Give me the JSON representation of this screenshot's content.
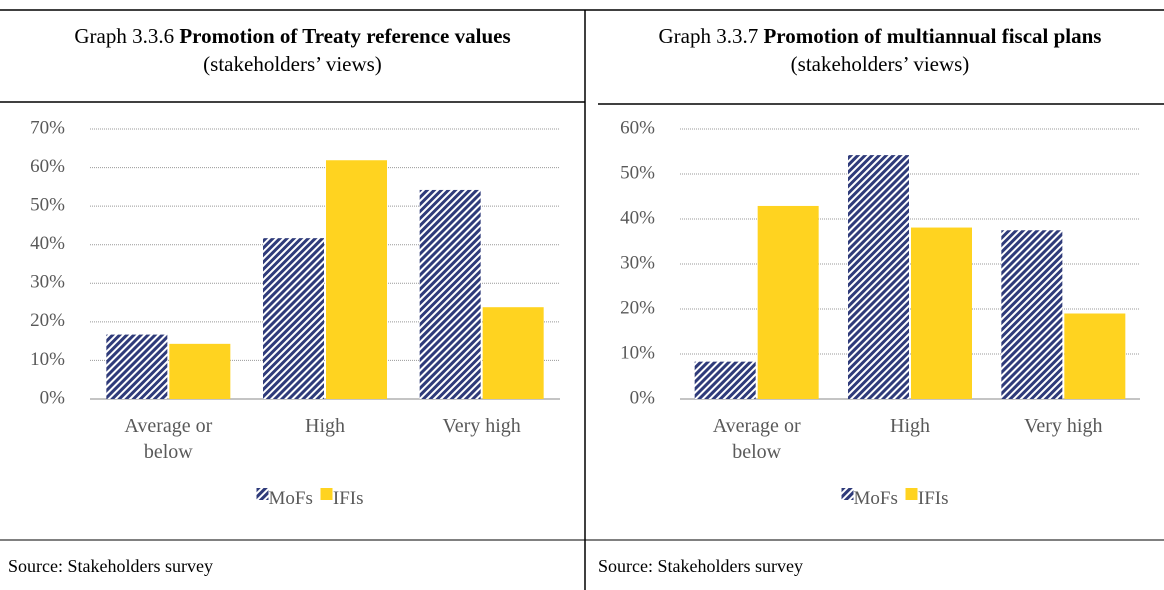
{
  "chart_data": [
    {
      "type": "bar",
      "number": "Graph 3.3.6",
      "title": "Promotion of Treaty reference values",
      "subtitle": "(stakeholders’ views)",
      "categories": [
        "Average or below",
        "High",
        "Very high"
      ],
      "series": [
        {
          "name": "MoFs",
          "color": "#2f3b7a",
          "pattern": "diagonal-stripes",
          "values": [
            16.7,
            41.7,
            54.2
          ]
        },
        {
          "name": "IFIs",
          "color": "#ffd320",
          "values": [
            14.3,
            61.9,
            23.8
          ]
        }
      ],
      "ylim": [
        0,
        70
      ],
      "yticks": [
        {
          "value": 0,
          "label": "0%"
        },
        {
          "value": 10,
          "label": "10%"
        },
        {
          "value": 20,
          "label": "20%"
        },
        {
          "value": 30,
          "label": "30%"
        },
        {
          "value": 40,
          "label": "40%"
        },
        {
          "value": 50,
          "label": "50%"
        },
        {
          "value": 60,
          "label": "60%"
        },
        {
          "value": 70,
          "label": "70%"
        }
      ],
      "grid": true,
      "legend": "bottom",
      "source": "Source: Stakeholders survey"
    },
    {
      "type": "bar",
      "number": "Graph 3.3.7",
      "title": "Promotion of multiannual fiscal plans",
      "subtitle": "(stakeholders’ views)",
      "categories": [
        "Average or below",
        "High",
        "Very high"
      ],
      "series": [
        {
          "name": "MoFs",
          "color": "#2f3b7a",
          "pattern": "diagonal-stripes",
          "values": [
            8.3,
            54.2,
            37.5
          ]
        },
        {
          "name": "IFIs",
          "color": "#ffd320",
          "values": [
            42.9,
            38.1,
            19.0
          ]
        }
      ],
      "ylim": [
        0,
        60
      ],
      "yticks": [
        {
          "value": 0,
          "label": "0%"
        },
        {
          "value": 10,
          "label": "10%"
        },
        {
          "value": 20,
          "label": "20%"
        },
        {
          "value": 30,
          "label": "30%"
        },
        {
          "value": 40,
          "label": "40%"
        },
        {
          "value": 50,
          "label": "50%"
        },
        {
          "value": 60,
          "label": "60%"
        }
      ],
      "grid": true,
      "legend": "bottom",
      "source": "Source: Stakeholders survey"
    }
  ]
}
